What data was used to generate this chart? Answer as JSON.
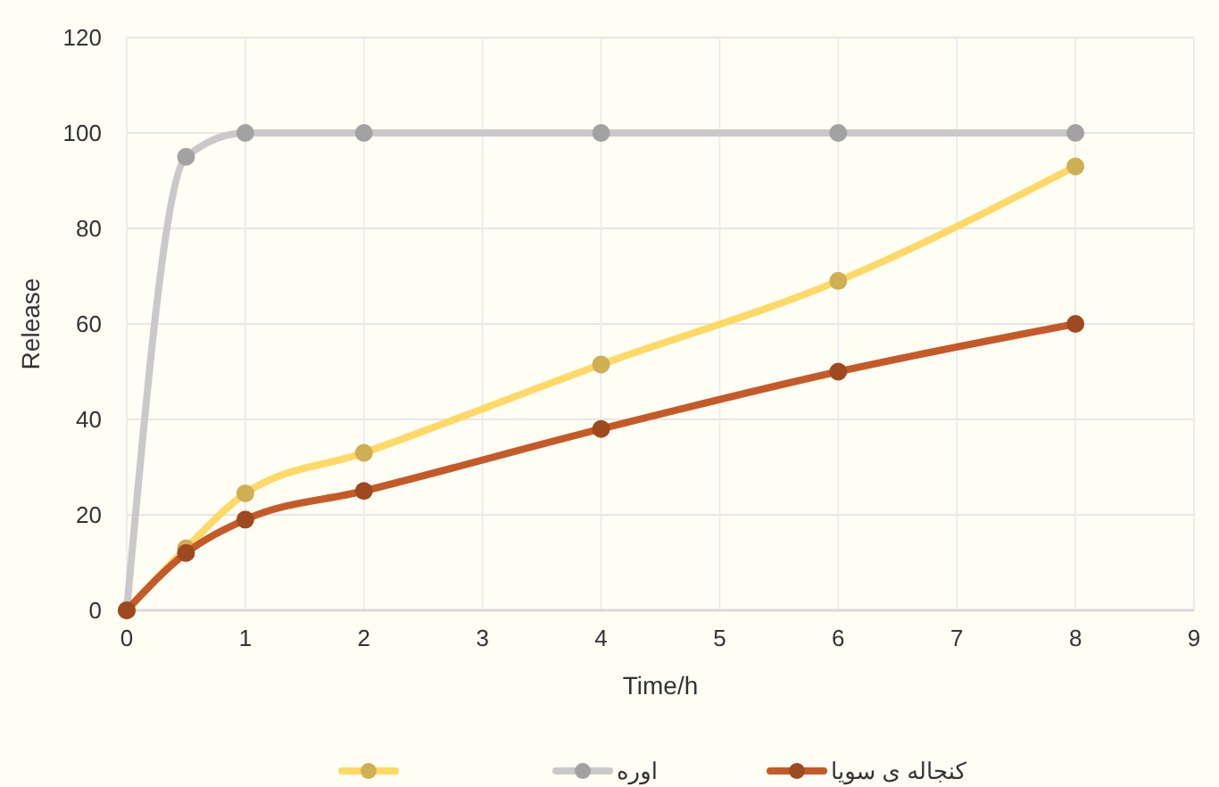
{
  "chart_data": {
    "type": "line",
    "xlabel": "Time/h",
    "ylabel": "Release",
    "x": [
      0,
      0.5,
      1,
      2,
      4,
      6,
      8
    ],
    "series": [
      {
        "color": "#ffd966",
        "values": [
          0,
          13,
          24.5,
          33,
          51.5,
          69,
          93
        ]
      },
      {
        "name": "اوره",
        "color": "#c9c9c9",
        "values": [
          0,
          95,
          100,
          100,
          100,
          100,
          100
        ]
      },
      {
        "name": "کنجاله ی سویا",
        "color": "#c55a28",
        "values": [
          0,
          12,
          19,
          25,
          38,
          50,
          60
        ]
      }
    ],
    "xlim": [
      0,
      9
    ],
    "xticks": [
      0,
      1,
      2,
      3,
      4,
      5,
      6,
      7,
      8,
      9
    ],
    "ylim": [
      0,
      120
    ],
    "yticks": [
      0,
      20,
      40,
      60,
      80,
      100,
      120
    ],
    "grid": true,
    "legend": "bottom",
    "marker": "circle",
    "line_style": "solid"
  }
}
